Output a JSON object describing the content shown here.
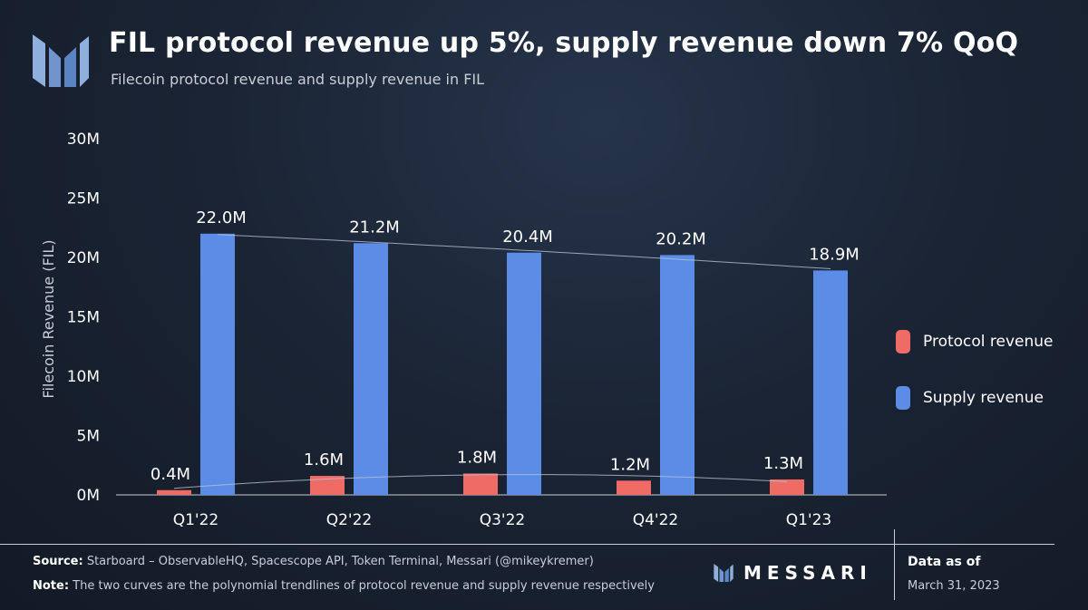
{
  "header": {
    "title": "FIL protocol revenue up 5%, supply revenue down 7% QoQ",
    "subtitle": "Filecoin protocol revenue and supply revenue in FIL"
  },
  "colors": {
    "protocol": "#ef6b66",
    "supply": "#5b8ce6",
    "trend": "#b7c3d4"
  },
  "chart_data": {
    "type": "bar",
    "title": "FIL protocol revenue up 5%, supply revenue down 7% QoQ",
    "subtitle": "Filecoin protocol revenue and supply revenue in FIL",
    "ylabel": "Filecoin Revenue (FIL)",
    "xlabel": "",
    "categories": [
      "Q1'22",
      "Q2'22",
      "Q3'22",
      "Q4'22",
      "Q1'23"
    ],
    "ylim": [
      0,
      30
    ],
    "yticks": [
      0,
      5,
      10,
      15,
      20,
      25,
      30
    ],
    "ytick_labels": [
      "0M",
      "5M",
      "10M",
      "15M",
      "20M",
      "25M",
      "30M"
    ],
    "unit": "M",
    "grid": false,
    "legend_position": "right",
    "trendlines": "polynomial",
    "series": [
      {
        "name": "Protocol revenue",
        "values": [
          0.4,
          1.6,
          1.8,
          1.2,
          1.3
        ],
        "labels": [
          "0.4M",
          "1.6M",
          "1.8M",
          "1.2M",
          "1.3M"
        ]
      },
      {
        "name": "Supply revenue",
        "values": [
          22.0,
          21.2,
          20.4,
          20.2,
          18.9
        ],
        "labels": [
          "22.0M",
          "21.2M",
          "20.4M",
          "20.2M",
          "18.9M"
        ]
      }
    ]
  },
  "footer": {
    "source_label": "Source:",
    "source_text": " Starboard – ObservableHQ, Spacescope API, Token Terminal, Messari (@mikeykremer)",
    "note_label": "Note:",
    "note_text": " The two curves are the polynomial trendlines of protocol revenue and supply revenue respectively",
    "brand": "MESSARI",
    "asof_label": "Data as of",
    "asof_date": "March 31, 2023"
  }
}
